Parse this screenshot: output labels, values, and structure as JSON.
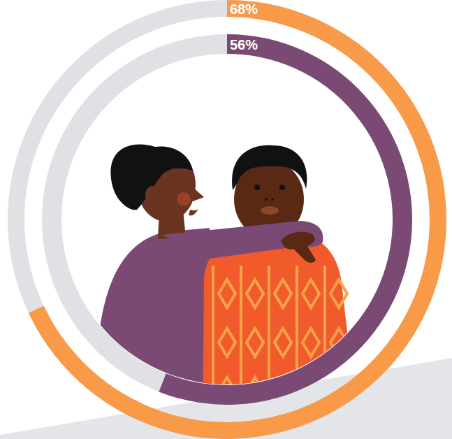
{
  "chart_data": {
    "type": "radial_bar",
    "values": [
      68,
      56
    ],
    "value_labels": [
      "68%",
      "56%"
    ],
    "colors": [
      "#f89a48",
      "#7b4a74"
    ],
    "ylim": [
      0,
      100
    ],
    "data_labels": true
  }
}
